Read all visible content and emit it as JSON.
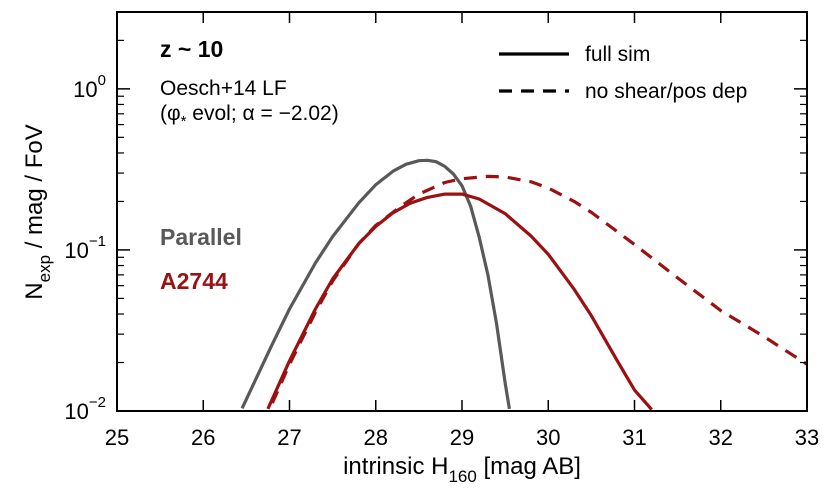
{
  "chart_data": {
    "type": "line",
    "title": "",
    "xlabel": "intrinsic H160 [mag AB]",
    "xlabel_parts": {
      "main": "intrinsic H",
      "sub": "160",
      "unit": " [mag AB]"
    },
    "ylabel": "Nexp / mag / FoV",
    "ylabel_parts": {
      "main": "N",
      "sub": "exp",
      "rest": " / mag / FoV"
    },
    "xlim": [
      25,
      33
    ],
    "ylim": [
      0.01,
      3
    ],
    "yscale": "log",
    "x_ticks": [
      25,
      26,
      27,
      28,
      29,
      30,
      31,
      32,
      33
    ],
    "x_tick_labels": [
      "25",
      "26",
      "27",
      "28",
      "29",
      "30",
      "31",
      "32",
      "33"
    ],
    "y_major_ticks": [
      0.01,
      0.1,
      1
    ],
    "y_tick_labels": [
      {
        "value": 0.01,
        "base": "10",
        "exp": "−2"
      },
      {
        "value": 0.1,
        "base": "10",
        "exp": "−1"
      },
      {
        "value": 1,
        "base": "10",
        "exp": "0"
      }
    ],
    "grid": false,
    "annotations": {
      "redshift": "z ~ 10",
      "lf_name": "Oesch+14 LF",
      "lf_detail_open": "(",
      "lf_phi": "φ",
      "lf_phi_sub": "*",
      "lf_detail_rest": " evol; α = −2.02)"
    },
    "legend": {
      "placement": "top-right",
      "entries": [
        {
          "label": "full sim",
          "style": "solid"
        },
        {
          "label": "no shear/pos dep",
          "style": "dashed"
        }
      ]
    },
    "series_labels": [
      {
        "label": "Parallel",
        "color": "#595959"
      },
      {
        "label": "A2744",
        "color": "#9b1010"
      }
    ],
    "series": [
      {
        "key": "parallel-full",
        "color": "#595959",
        "style": "solid",
        "x": [
          26.45,
          26.8,
          27.0,
          27.3,
          27.5,
          27.8,
          28.0,
          28.2,
          28.35,
          28.5,
          28.6,
          28.7,
          28.8,
          28.9,
          29.0,
          29.1,
          29.2,
          29.3,
          29.4,
          29.5,
          29.55
        ],
        "y": [
          0.0104,
          0.026,
          0.043,
          0.083,
          0.121,
          0.195,
          0.254,
          0.308,
          0.34,
          0.358,
          0.36,
          0.353,
          0.33,
          0.296,
          0.25,
          0.187,
          0.12,
          0.07,
          0.035,
          0.015,
          0.0103
        ]
      },
      {
        "key": "a2744-full",
        "color": "#9b1010",
        "style": "solid",
        "x": [
          26.75,
          27.0,
          27.3,
          27.5,
          27.8,
          28.0,
          28.2,
          28.4,
          28.6,
          28.8,
          29.0,
          29.2,
          29.5,
          29.8,
          30.0,
          30.3,
          30.5,
          30.8,
          31.0,
          31.2
        ],
        "y": [
          0.0103,
          0.0205,
          0.043,
          0.066,
          0.109,
          0.14,
          0.17,
          0.195,
          0.212,
          0.222,
          0.222,
          0.207,
          0.168,
          0.122,
          0.094,
          0.057,
          0.039,
          0.0205,
          0.0135,
          0.0102
        ]
      },
      {
        "key": "a2744-no-shear",
        "color": "#9b1010",
        "style": "dashed",
        "x": [
          26.8,
          27.0,
          27.3,
          27.5,
          27.8,
          28.0,
          28.3,
          28.5,
          28.8,
          29.0,
          29.3,
          29.5,
          29.8,
          30.0,
          30.3,
          30.5,
          31.0,
          31.5,
          32.0,
          32.5,
          33.0
        ],
        "y": [
          0.0112,
          0.0195,
          0.041,
          0.064,
          0.109,
          0.142,
          0.188,
          0.222,
          0.262,
          0.277,
          0.286,
          0.284,
          0.265,
          0.242,
          0.2,
          0.171,
          0.108,
          0.067,
          0.042,
          0.029,
          0.0195
        ]
      }
    ]
  }
}
